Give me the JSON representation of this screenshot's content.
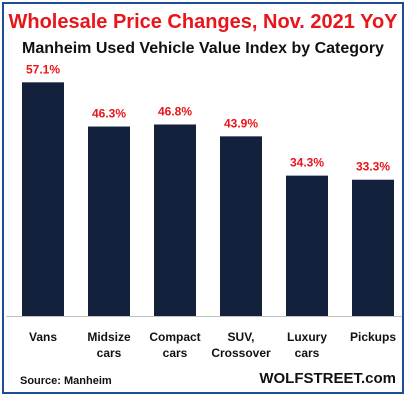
{
  "title": "Wholesale Price Changes, Nov. 2021 YoY",
  "subtitle": "Manheim Used Vehicle Value Index by Category",
  "source": "Source: Manheim",
  "brand": "WOLFSTREET.com",
  "colors": {
    "title": "#e8151b",
    "bar": "#14213d",
    "data_label": "#e8151b",
    "border": "#1f4e96",
    "baseline": "#bfbfbf"
  },
  "chart_data": {
    "type": "bar",
    "categories": [
      [
        "Vans"
      ],
      [
        "Midsize",
        "cars"
      ],
      [
        "Compact",
        "cars"
      ],
      [
        "SUV,",
        "Crossover"
      ],
      [
        "Luxury",
        "cars"
      ],
      [
        "Pickups"
      ]
    ],
    "values": [
      57.1,
      46.3,
      46.8,
      43.9,
      34.3,
      33.3
    ],
    "data_labels": [
      "57.1%",
      "46.3%",
      "46.8%",
      "43.9%",
      "34.3%",
      "33.3%"
    ],
    "ylim": [
      0,
      65
    ],
    "grid": false,
    "legend": "none"
  }
}
